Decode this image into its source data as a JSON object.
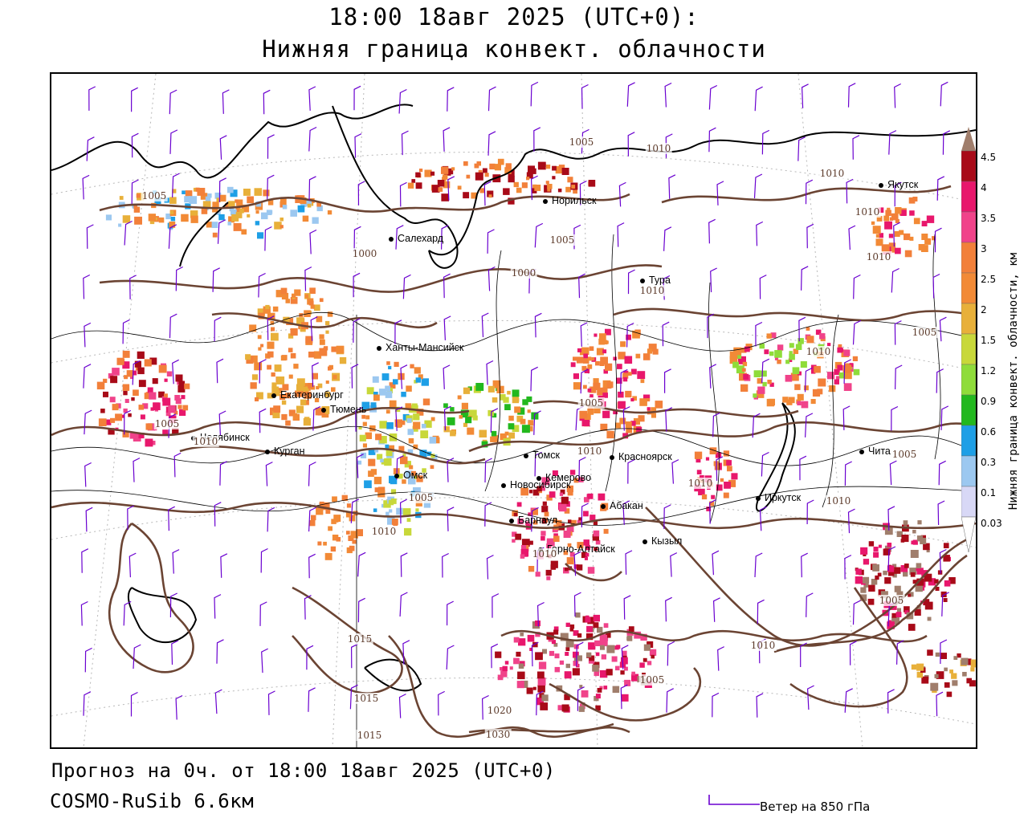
{
  "header": {
    "title_line1": "18:00 18авг 2025 (UTC+0):",
    "title_line2": "Нижняя граница конвект. облачности"
  },
  "map": {
    "cities": [
      {
        "name": "Салехард"
      },
      {
        "name": "Норильск"
      },
      {
        "name": "Якутск"
      },
      {
        "name": "Тура"
      },
      {
        "name": "Ханты-Мансийск"
      },
      {
        "name": "Екатеринбург"
      },
      {
        "name": "Тюмень"
      },
      {
        "name": "Челябинск"
      },
      {
        "name": "Курган"
      },
      {
        "name": "Омск"
      },
      {
        "name": "Новосибирск"
      },
      {
        "name": "Томск"
      },
      {
        "name": "Кемерово"
      },
      {
        "name": "Красноярск"
      },
      {
        "name": "Абакан"
      },
      {
        "name": "Барнаул"
      },
      {
        "name": "Горно-Алтайск"
      },
      {
        "name": "Кызыл"
      },
      {
        "name": "Иркутск"
      },
      {
        "name": "Чита"
      }
    ],
    "isobar_labels": [
      "1005",
      "1000",
      "1000",
      "1005",
      "1005",
      "1010",
      "1010",
      "1010",
      "1010",
      "1010",
      "1005",
      "1010",
      "1005",
      "1005",
      "1005",
      "1010",
      "1010",
      "1010",
      "1010",
      "1010",
      "1010",
      "1005",
      "1015",
      "1015",
      "1015",
      "1005",
      "1010",
      "1020",
      "1030",
      "1005"
    ],
    "colors": {
      "isobar": "#6b4433",
      "coast": "#000000",
      "border": "#000000",
      "wind_barb": "#6a00d0",
      "gridline": "#b8b8b8"
    }
  },
  "legend": {
    "title": "Нижняя граница конвект. облачности, км",
    "levels": [
      {
        "label": "4.5",
        "color": "#a07e6c"
      },
      {
        "label": "4",
        "color": "#a80a18"
      },
      {
        "label": "3.5",
        "color": "#e8176c"
      },
      {
        "label": "3",
        "color": "#f0438a"
      },
      {
        "label": "2.5",
        "color": "#f2803a"
      },
      {
        "label": "2",
        "color": "#f28a36"
      },
      {
        "label": "1.5",
        "color": "#e8b03a"
      },
      {
        "label": "1.2",
        "color": "#c8d83a"
      },
      {
        "label": "0.9",
        "color": "#8fdc3a"
      },
      {
        "label": "0.6",
        "color": "#22b81e"
      },
      {
        "label": "0.3",
        "color": "#1e9fe6"
      },
      {
        "label": "0.1",
        "color": "#9cc8f0"
      },
      {
        "label": "0.03",
        "color": "#d8d8f6"
      }
    ]
  },
  "footer": {
    "forecast": "Прогноз на 0ч. от 18:00 18авг 2025 (UTC+0)",
    "model": "COSMO-RuSib 6.6км",
    "wind_legend": "Ветер на 850 гПа"
  }
}
